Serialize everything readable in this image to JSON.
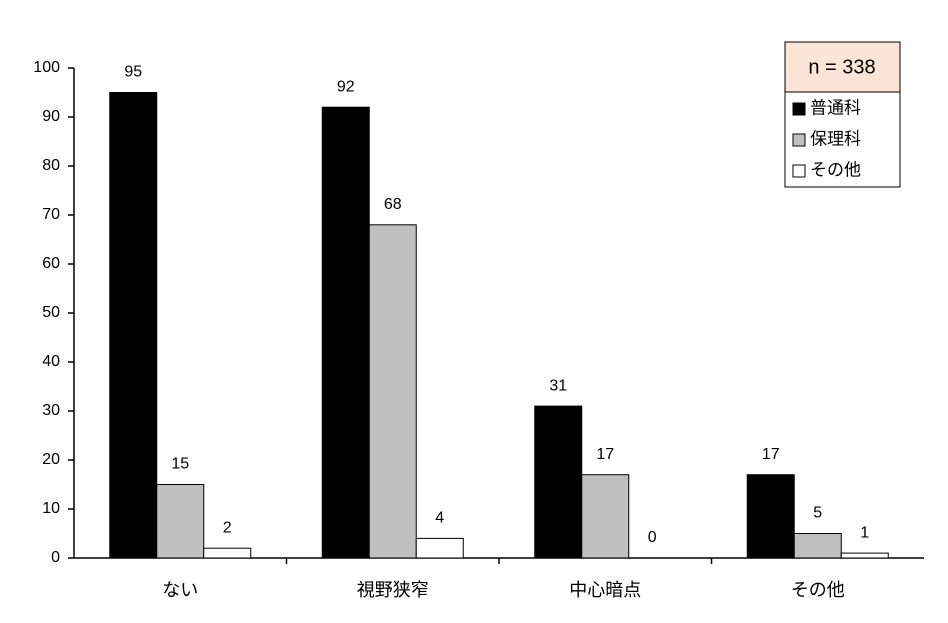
{
  "chart_data": {
    "type": "bar",
    "annotation": "n = 338",
    "categories": [
      "ない",
      "視野狭窄",
      "中心暗点",
      "その他"
    ],
    "series": [
      {
        "name": "普通科",
        "color": "#000000",
        "values": [
          95,
          92,
          31,
          17
        ]
      },
      {
        "name": "保理科",
        "color": "#c0c0c0",
        "values": [
          15,
          68,
          17,
          5
        ]
      },
      {
        "name": "その他",
        "color": "#ffffff",
        "values": [
          2,
          4,
          0,
          1
        ]
      }
    ],
    "ylim": [
      0,
      100
    ],
    "yticks": [
      0,
      10,
      20,
      30,
      40,
      50,
      60,
      70,
      80,
      90,
      100
    ],
    "legend": "upper right"
  }
}
